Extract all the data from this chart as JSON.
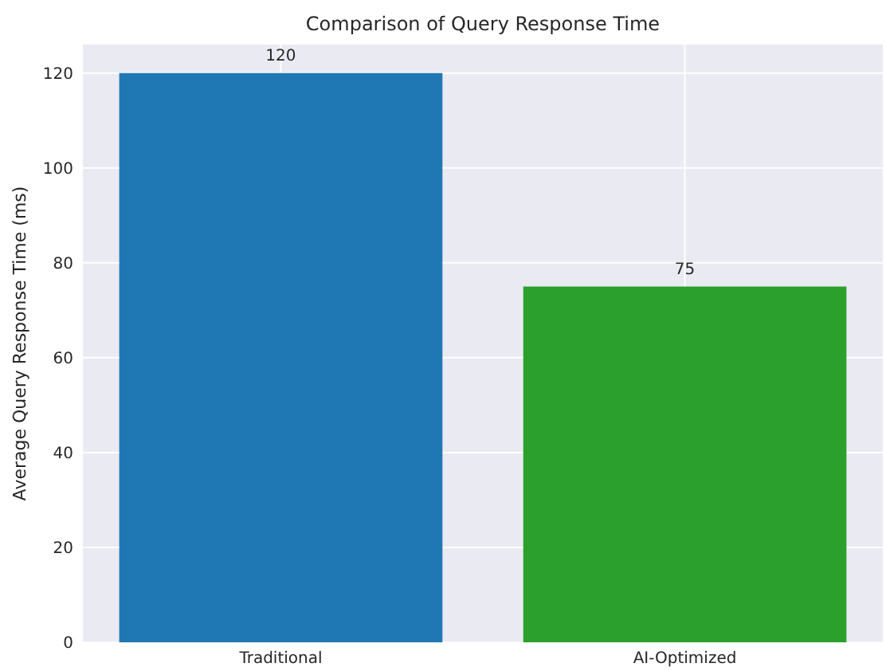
{
  "chart_data": {
    "type": "bar",
    "title": "Comparison of Query Response Time",
    "ylabel": "Average Query Response Time (ms)",
    "categories": [
      "Traditional",
      "AI-Optimized"
    ],
    "values": [
      120,
      75
    ],
    "colors": [
      "#1f77b4",
      "#2ca02c"
    ],
    "ylim": [
      0,
      126
    ],
    "yticks": [
      0,
      20,
      40,
      60,
      80,
      100,
      120
    ],
    "grid": true,
    "data_labels": true
  }
}
